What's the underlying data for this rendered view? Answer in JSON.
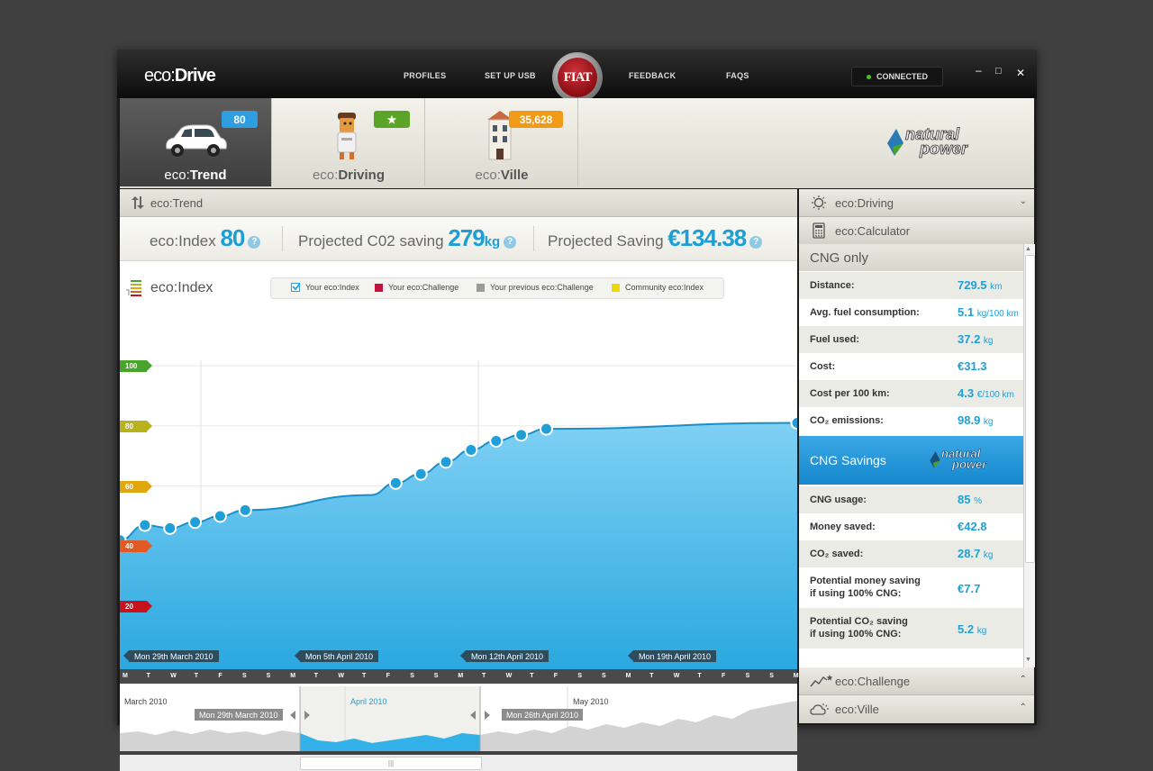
{
  "titlebar": {
    "logo_pre": "eco:",
    "logo_bold": "Drive",
    "nav": [
      "PROFILES",
      "SET UP USB",
      "FEEDBACK",
      "FAQS"
    ],
    "brand": "FIAT",
    "status": "CONNECTED",
    "controls": {
      "min": "–",
      "max": "□",
      "close": "✕"
    }
  },
  "tabs": [
    {
      "pre": "eco:",
      "bold": "Trend",
      "badge": "80",
      "badge_color": "#2f9ee0",
      "icon": "car-icon",
      "active": true
    },
    {
      "pre": "eco:",
      "bold": "Driving",
      "badge": "★",
      "badge_color": "#5ba427",
      "icon": "driver-icon"
    },
    {
      "pre": "eco:",
      "bold": "Ville",
      "badge": "35,628",
      "badge_color": "#f09a18",
      "icon": "building-icon"
    }
  ],
  "brand_logo": {
    "line1": "natural",
    "line2": "power"
  },
  "main": {
    "section_title": "eco:Trend",
    "stats": [
      {
        "label": "eco:Index",
        "value": "80",
        "unit": ""
      },
      {
        "label": "Projected C02 saving",
        "value": "279",
        "unit": "kg"
      },
      {
        "label": "Projected Saving",
        "value": "€134.38",
        "unit": ""
      }
    ],
    "chart_title": "eco:Index",
    "legend": [
      {
        "label": "Your eco:Index",
        "color": "#2f9ee0"
      },
      {
        "label": "Your eco:Challenge",
        "color": "#c8103e"
      },
      {
        "label": "Your previous eco:Challenge",
        "color": "#9a9a9a"
      },
      {
        "label": "Community eco:Index",
        "color": "#f2d600"
      }
    ],
    "date_labels": [
      "Mon 29th March 2010",
      "Mon 5th April 2010",
      "Mon 12th April 2010",
      "Mon 19th April 2010"
    ],
    "days": [
      "M",
      "T",
      "W",
      "T",
      "F",
      "S",
      "S",
      "M",
      "T",
      "W",
      "T",
      "F",
      "S",
      "S",
      "M",
      "T",
      "W",
      "T",
      "F",
      "S",
      "S",
      "M",
      "T",
      "W",
      "T",
      "F",
      "S",
      "S",
      "M"
    ],
    "navigator": {
      "months": [
        "March 2010",
        "April 2010",
        "May 2010"
      ],
      "range_start": "Mon 29th March 2010",
      "range_end": "Mon 26th April 2010",
      "grip": "|||"
    }
  },
  "chart_data": {
    "type": "area",
    "title": "eco:Index",
    "ylim": [
      0,
      100
    ],
    "y_ticks": [
      {
        "v": 100,
        "color": "#4aa32c"
      },
      {
        "v": 80,
        "color": "#b8b21f"
      },
      {
        "v": 60,
        "color": "#e0a70f"
      },
      {
        "v": 40,
        "color": "#e25a23"
      },
      {
        "v": 20,
        "color": "#c8121e"
      }
    ],
    "x_range": [
      "2010-03-28",
      "2010-04-24"
    ],
    "x": [
      "2010-03-28",
      "2010-03-29",
      "2010-03-30",
      "2010-03-31",
      "2010-04-01",
      "2010-04-02",
      "2010-04-07",
      "2010-04-08",
      "2010-04-09",
      "2010-04-10",
      "2010-04-11",
      "2010-04-12",
      "2010-04-13",
      "2010-04-14",
      "2010-04-24"
    ],
    "series": [
      {
        "values": [
          42,
          47,
          46,
          48,
          50,
          52,
          57,
          61,
          64,
          68,
          72,
          75,
          77,
          79,
          81
        ],
        "color": "#1e9fd8"
      }
    ]
  },
  "right": {
    "driving_title": "eco:Driving",
    "calc_title": "eco:Calculator",
    "cng_title": "CNG only",
    "cng_rows": [
      {
        "label": "Distance:",
        "value": "729.5",
        "unit": "km"
      },
      {
        "label": "Avg. fuel consumption:",
        "value": "5.1",
        "unit": "kg/100 km"
      },
      {
        "label": "Fuel used:",
        "value": "37.2",
        "unit": "kg"
      },
      {
        "label": "Cost:",
        "value": "€31.3",
        "unit": ""
      },
      {
        "label": "Cost per 100 km:",
        "value": "4.3",
        "unit": "€/100 km"
      },
      {
        "label": "CO₂ emissions:",
        "value": "98.9",
        "unit": "kg"
      }
    ],
    "savings_title": "CNG Savings",
    "savings_rows": [
      {
        "label": "CNG usage:",
        "value": "85",
        "unit": "%"
      },
      {
        "label": "Money saved:",
        "value": "€42.8",
        "unit": ""
      },
      {
        "label": "CO₂ saved:",
        "value": "28.7",
        "unit": "kg"
      }
    ],
    "potential_rows": [
      {
        "line1": "Potential money saving",
        "line2": "if using 100% CNG:",
        "value": "€7.7",
        "unit": ""
      },
      {
        "line1": "Potential CO₂ saving",
        "line2": "if using 100% CNG:",
        "value": "5.2",
        "unit": "kg"
      }
    ],
    "challenge_title": "eco:Challenge",
    "ville_title": "eco:Ville"
  }
}
